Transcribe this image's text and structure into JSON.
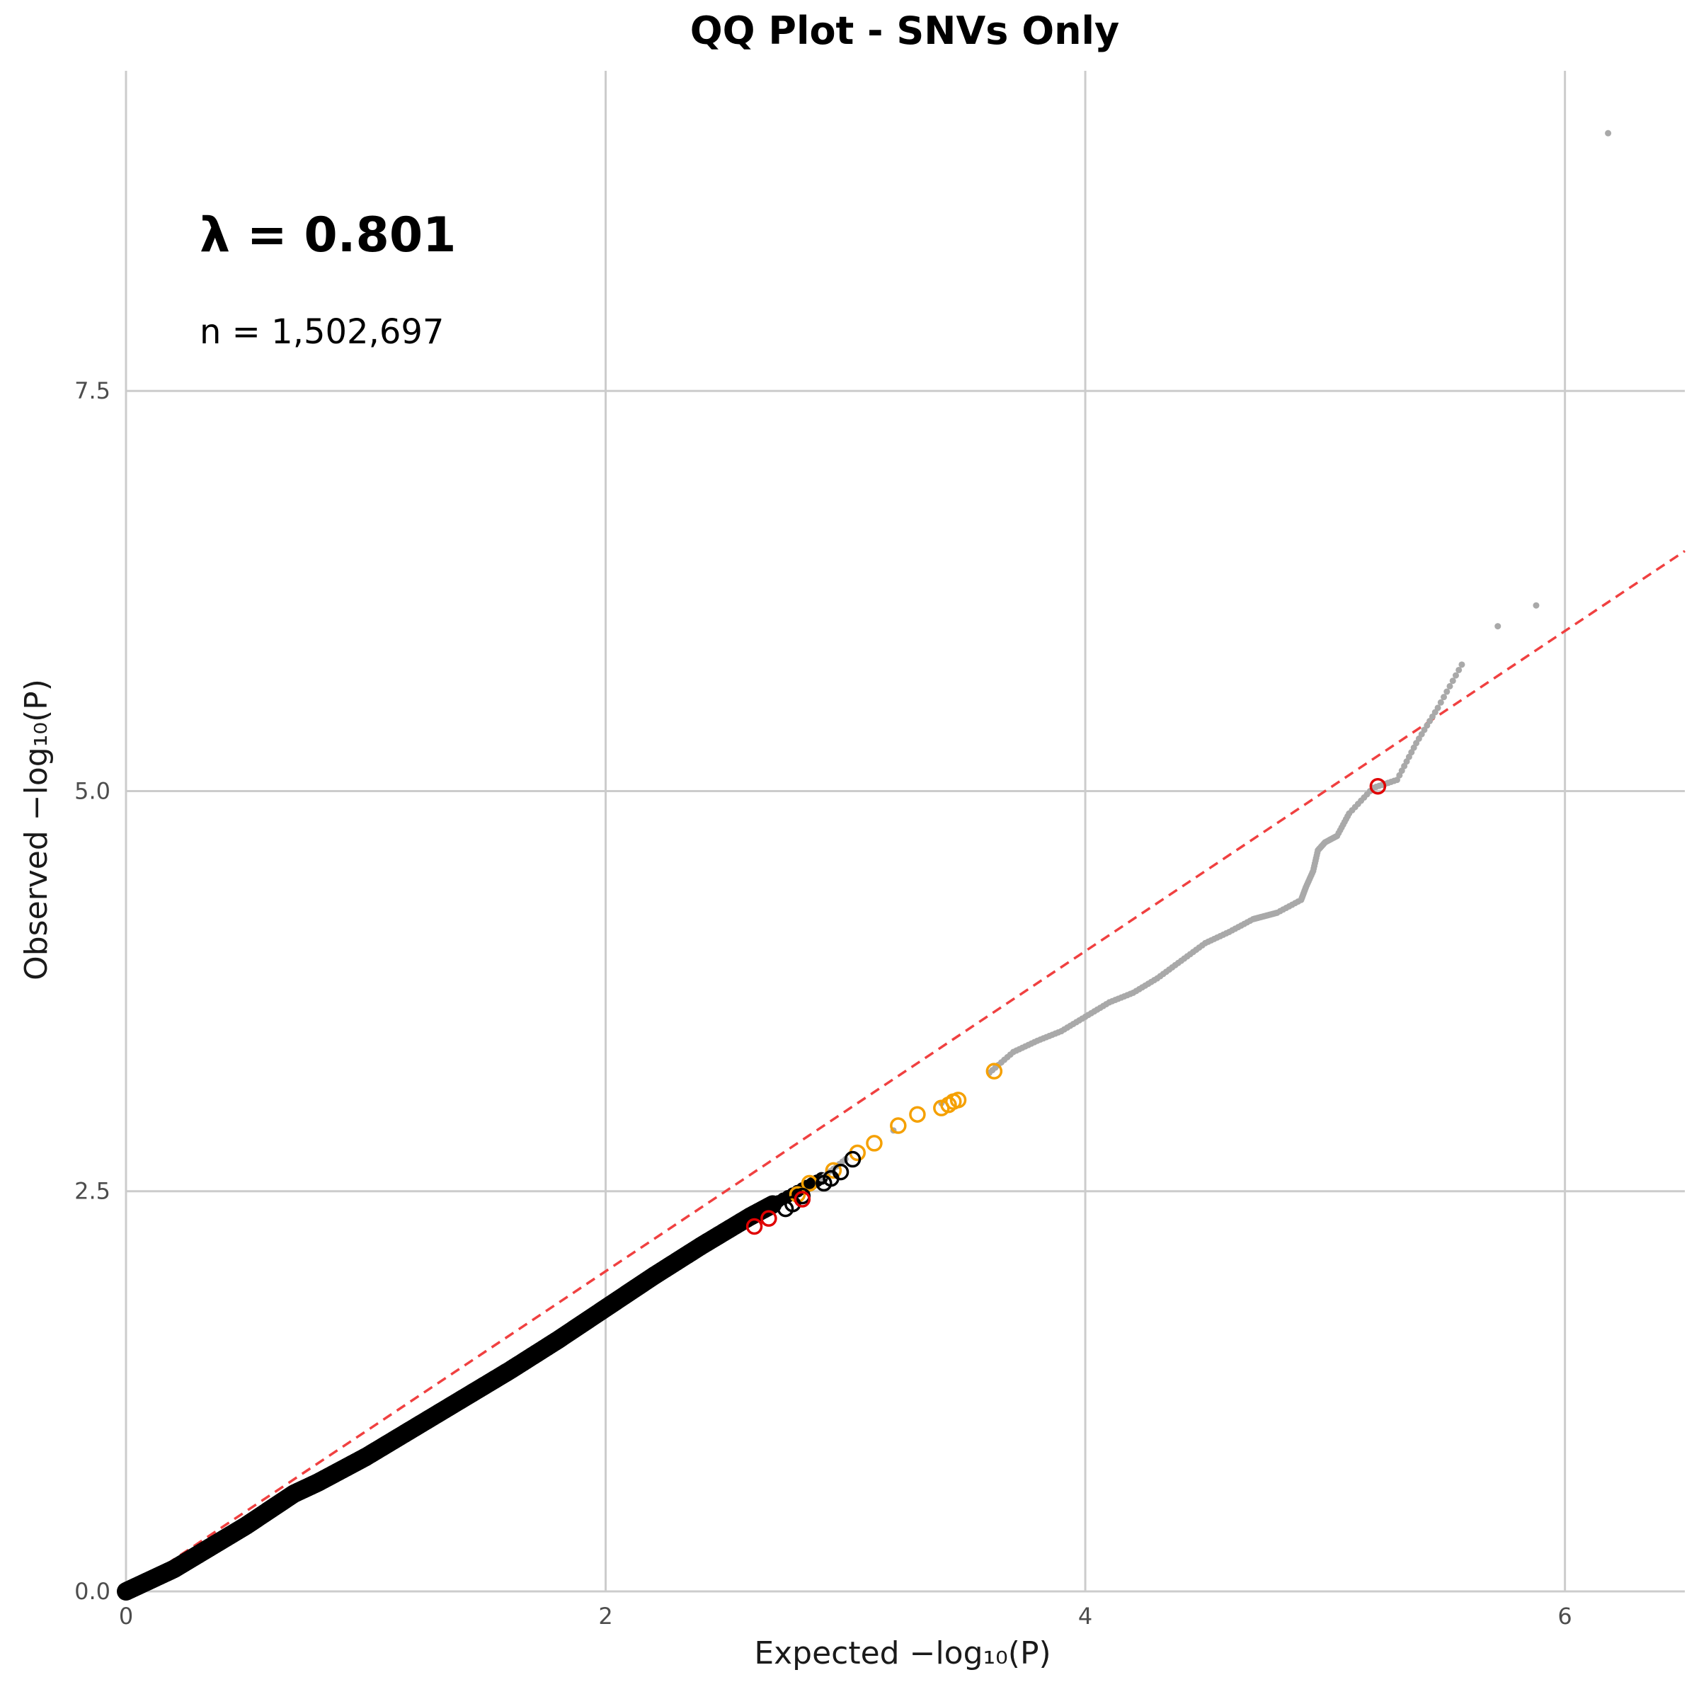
{
  "chart_data": {
    "type": "scatter",
    "title": "QQ Plot - SNVs Only",
    "xlabel": "Expected −log₁₀(P)",
    "ylabel": "Observed −log₁₀(P)",
    "xlim": [
      0,
      6.5
    ],
    "ylim": [
      0,
      9.5
    ],
    "x_ticks": [
      "0",
      "2",
      "4",
      "6"
    ],
    "y_ticks": [
      "0.0",
      "2.5",
      "5.0",
      "7.5"
    ],
    "grid": true,
    "annotations": {
      "lambda": "λ = 0.801",
      "n": "n = 1,502,697"
    },
    "reference_line": {
      "x": [
        0,
        6.5
      ],
      "y": [
        0,
        6.5
      ],
      "color": "#f04040",
      "style": "dashed"
    },
    "colors": {
      "main": "#000000",
      "tail": "#a9a9a9",
      "highlight_orange": "#f5a000",
      "highlight_red": "#e00000",
      "highlight_black": "#000000"
    },
    "series": [
      {
        "style": "main-curve",
        "x": [
          0,
          0.1,
          0.2,
          0.3,
          0.4,
          0.5,
          0.6,
          0.7,
          0.8,
          0.9,
          1.0,
          1.2,
          1.4,
          1.6,
          1.8,
          2.0,
          2.2,
          2.4,
          2.6,
          2.7
        ],
        "y": [
          0.0,
          0.07,
          0.14,
          0.23,
          0.32,
          0.41,
          0.51,
          0.61,
          0.68,
          0.76,
          0.84,
          1.02,
          1.2,
          1.38,
          1.57,
          1.77,
          1.97,
          2.16,
          2.34,
          2.42
        ]
      },
      {
        "style": "tail",
        "x": [
          2.9,
          3.0,
          3.2,
          3.4,
          3.6,
          3.7,
          3.8,
          3.9,
          4.0,
          4.1,
          4.2,
          4.3,
          4.4,
          4.5,
          4.6,
          4.7,
          4.75,
          4.8,
          4.9,
          4.92,
          4.95,
          4.97,
          5.0,
          5.05,
          5.1,
          5.2,
          5.3,
          5.38,
          5.47,
          5.57,
          5.72,
          5.88,
          6.18
        ],
        "y": [
          2.58,
          2.7,
          2.88,
          3.05,
          3.24,
          3.37,
          3.44,
          3.5,
          3.59,
          3.68,
          3.74,
          3.83,
          3.94,
          4.05,
          4.12,
          4.2,
          4.22,
          4.24,
          4.32,
          4.4,
          4.5,
          4.63,
          4.68,
          4.72,
          4.86,
          5.02,
          5.07,
          5.3,
          5.52,
          5.79,
          6.03,
          6.16,
          9.11
        ]
      },
      {
        "style": "highlight-orange",
        "x": [
          2.8,
          2.85,
          2.95,
          3.05,
          3.12,
          3.22,
          3.3,
          3.4,
          3.43,
          3.45,
          3.47,
          3.62
        ],
        "y": [
          2.48,
          2.55,
          2.63,
          2.74,
          2.8,
          2.91,
          2.98,
          3.02,
          3.04,
          3.06,
          3.07,
          3.25
        ]
      },
      {
        "style": "highlight-black",
        "x": [
          2.75,
          2.78,
          2.82,
          2.91,
          2.94,
          2.98,
          3.03
        ],
        "y": [
          2.39,
          2.42,
          2.47,
          2.55,
          2.58,
          2.62,
          2.7
        ]
      },
      {
        "style": "highlight-red",
        "x": [
          2.62,
          2.68,
          2.82,
          5.22
        ],
        "y": [
          2.28,
          2.33,
          2.45,
          5.03
        ]
      }
    ]
  }
}
